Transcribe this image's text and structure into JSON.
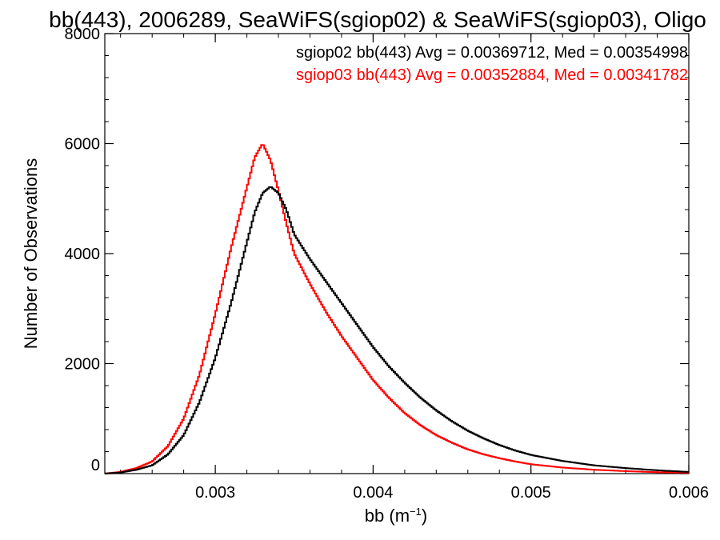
{
  "chart_data": {
    "type": "line",
    "title": "bb(443), 2006289, SeaWiFS(sgiop02) & SeaWiFS(sgiop03), Oligo",
    "xlabel_base": "bb (m",
    "xlabel_exp": "−1",
    "xlabel_close": ")",
    "ylabel": "Number of Observations",
    "xlim": [
      0.0023,
      0.006
    ],
    "ylim": [
      0,
      8000
    ],
    "xticks": [
      0.003,
      0.004,
      0.005,
      0.006
    ],
    "xtick_labels": [
      "0.003",
      "0.004",
      "0.005",
      "0.006"
    ],
    "yticks": [
      0,
      2000,
      4000,
      6000,
      8000
    ],
    "ytick_labels": [
      "0",
      "2000",
      "4000",
      "6000",
      "8000"
    ],
    "grid": false,
    "legend": "top-right",
    "series": [
      {
        "name": "sgiop02",
        "legend_text": "sgiop02 bb(443) Avg = 0.00369712, Med = 0.00354998",
        "color": "#000000",
        "x": [
          0.0023,
          0.0024,
          0.0025,
          0.0026,
          0.0027,
          0.0028,
          0.0029,
          0.003,
          0.0031,
          0.0032,
          0.00325,
          0.0033,
          0.00335,
          0.0034,
          0.00345,
          0.0035,
          0.0036,
          0.0037,
          0.0038,
          0.0039,
          0.004,
          0.0041,
          0.0042,
          0.0043,
          0.0044,
          0.0045,
          0.0046,
          0.0047,
          0.0048,
          0.0049,
          0.005,
          0.0052,
          0.0054,
          0.0056,
          0.0058,
          0.006
        ],
        "y": [
          0,
          20,
          70,
          150,
          350,
          700,
          1300,
          2100,
          3100,
          4200,
          4750,
          5100,
          5220,
          5100,
          4800,
          4350,
          3900,
          3500,
          3100,
          2700,
          2300,
          1950,
          1650,
          1380,
          1150,
          950,
          780,
          640,
          520,
          420,
          340,
          230,
          150,
          100,
          60,
          30
        ]
      },
      {
        "name": "sgiop03",
        "legend_text": "sgiop03 bb(443) Avg = 0.00352884, Med = 0.00341782",
        "color": "#ff0000",
        "x": [
          0.0023,
          0.0024,
          0.0025,
          0.0026,
          0.0027,
          0.0028,
          0.0029,
          0.003,
          0.0031,
          0.0032,
          0.00325,
          0.0033,
          0.00335,
          0.0034,
          0.00345,
          0.0035,
          0.0036,
          0.0037,
          0.0038,
          0.0039,
          0.004,
          0.0041,
          0.0042,
          0.0043,
          0.0044,
          0.0045,
          0.0046,
          0.0047,
          0.0048,
          0.0049,
          0.005,
          0.0052,
          0.0054,
          0.0056,
          0.0058,
          0.006
        ],
        "y": [
          0,
          30,
          100,
          220,
          500,
          1000,
          1800,
          2900,
          4100,
          5200,
          5750,
          6000,
          5700,
          5150,
          4550,
          4000,
          3450,
          2950,
          2500,
          2100,
          1700,
          1380,
          1100,
          880,
          700,
          560,
          440,
          350,
          280,
          220,
          170,
          110,
          70,
          45,
          25,
          15
        ]
      }
    ]
  }
}
